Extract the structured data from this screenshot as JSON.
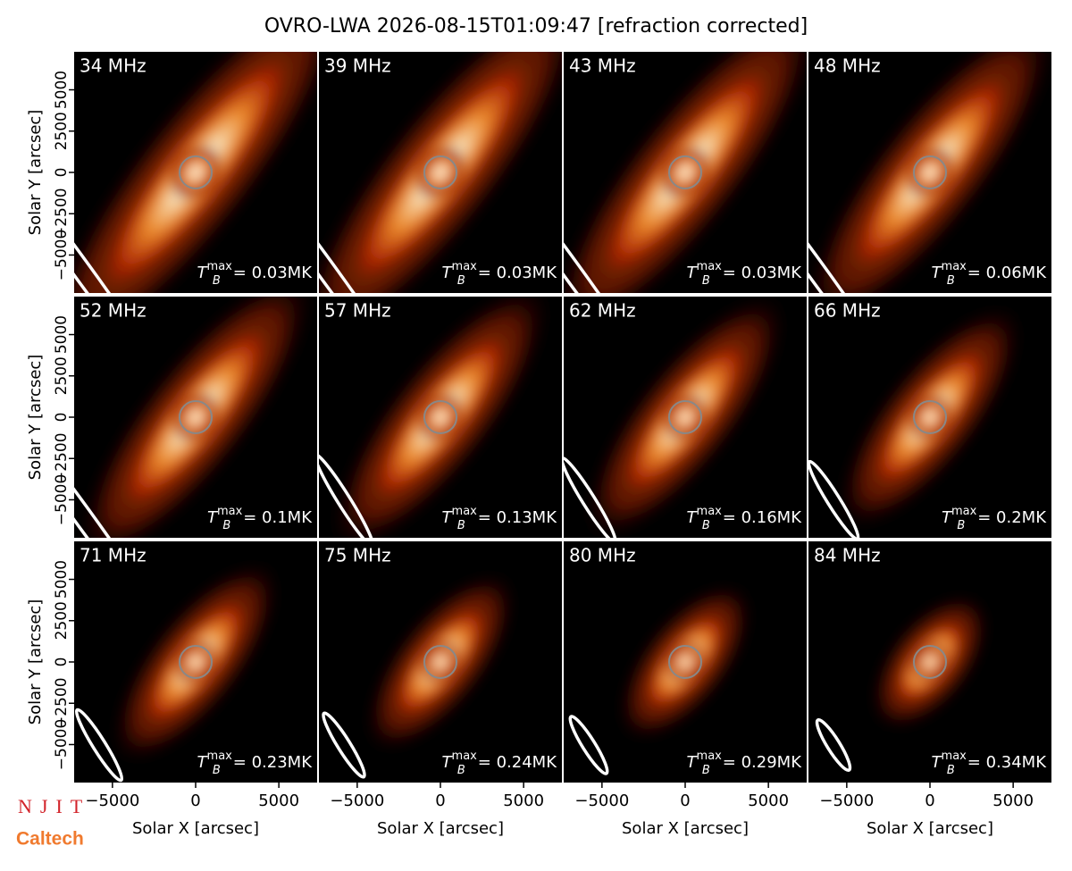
{
  "chart_data": {
    "type": "image-grid",
    "title": "OVRO-LWA 2026-08-15T01:09:47 [refraction corrected]",
    "xlabel": "Solar X [arcsec]",
    "ylabel": "Solar Y [arcsec]",
    "xlim": [
      -7300,
      7300
    ],
    "ylim": [
      -7300,
      7300
    ],
    "xticks": [
      {
        "value": -5000,
        "label": "−5000"
      },
      0,
      5000
    ],
    "yticks": [
      {
        "value": -5000,
        "label": "−5000"
      },
      {
        "value": -2500,
        "label": "−2500"
      },
      0,
      2500,
      5000
    ],
    "tb_symbol": "T",
    "tb_sub": "B",
    "tb_sup": "max",
    "panels": [
      {
        "label": "34 MHz",
        "tb_max": "= 0.03MK"
      },
      {
        "label": "39 MHz",
        "tb_max": "= 0.03MK"
      },
      {
        "label": "43 MHz",
        "tb_max": "= 0.03MK"
      },
      {
        "label": "48 MHz",
        "tb_max": "= 0.06MK"
      },
      {
        "label": "52 MHz",
        "tb_max": "= 0.1MK"
      },
      {
        "label": "57 MHz",
        "tb_max": "= 0.13MK"
      },
      {
        "label": "62 MHz",
        "tb_max": "= 0.16MK"
      },
      {
        "label": "66 MHz",
        "tb_max": "= 0.2MK"
      },
      {
        "label": "71 MHz",
        "tb_max": "= 0.23MK"
      },
      {
        "label": "75 MHz",
        "tb_max": "= 0.24MK"
      },
      {
        "label": "80 MHz",
        "tb_max": "= 0.29MK"
      },
      {
        "label": "84 MHz",
        "tb_max": "= 0.34MK"
      }
    ],
    "logos": [
      "NJIT",
      "Caltech"
    ]
  }
}
